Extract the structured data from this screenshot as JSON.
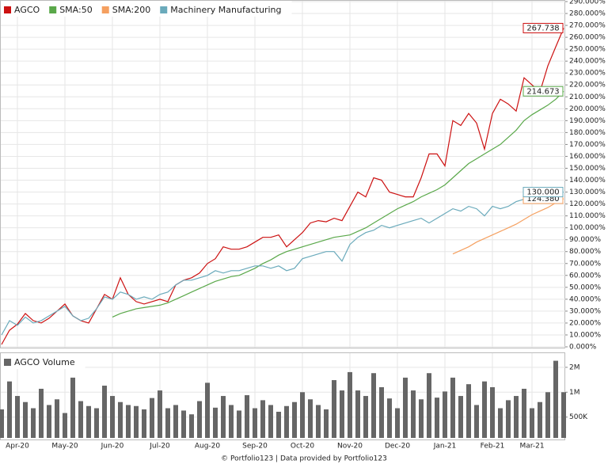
{
  "chart_data": [
    {
      "type": "line",
      "series": [
        {
          "name": "AGCO",
          "color": "#cc1111",
          "values": [
            2,
            14,
            19,
            28,
            22,
            20,
            24,
            30,
            36,
            26,
            22,
            20,
            32,
            44,
            40,
            58,
            44,
            38,
            36,
            38,
            40,
            38,
            52,
            56,
            58,
            62,
            70,
            74,
            84,
            82,
            82,
            84,
            88,
            92,
            92,
            94,
            84,
            90,
            96,
            104,
            106,
            105,
            108,
            106,
            118,
            130,
            126,
            142,
            140,
            130,
            128,
            126,
            126,
            142,
            162,
            162,
            152,
            190,
            186,
            196,
            188,
            166,
            196,
            208,
            204,
            198,
            226,
            220,
            214,
            236,
            252,
            267.738
          ],
          "value_labels": {
            "71": "267.738"
          }
        },
        {
          "name": "SMA:50",
          "color": "#5aa84a",
          "values": [
            null,
            null,
            null,
            null,
            null,
            null,
            null,
            null,
            null,
            null,
            null,
            null,
            null,
            null,
            25,
            28,
            30,
            32,
            33,
            34,
            35,
            37,
            40,
            43,
            46,
            49,
            52,
            55,
            57,
            59,
            60,
            63,
            66,
            70,
            73,
            77,
            80,
            82,
            84,
            86,
            88,
            90,
            92,
            93,
            94,
            97,
            100,
            104,
            108,
            112,
            116,
            119,
            122,
            126,
            129,
            132,
            136,
            142,
            148,
            154,
            158,
            162,
            166,
            170,
            176,
            182,
            190,
            195,
            199,
            203,
            208,
            214.673
          ],
          "value_labels": {
            "71": "214.673"
          }
        },
        {
          "name": "SMA:200",
          "color": "#f5a060",
          "values": [
            null,
            null,
            null,
            null,
            null,
            null,
            null,
            null,
            null,
            null,
            null,
            null,
            null,
            null,
            null,
            null,
            null,
            null,
            null,
            null,
            null,
            null,
            null,
            null,
            null,
            null,
            null,
            null,
            null,
            null,
            null,
            null,
            null,
            null,
            null,
            null,
            null,
            null,
            null,
            null,
            null,
            null,
            null,
            null,
            null,
            null,
            null,
            null,
            null,
            null,
            null,
            null,
            null,
            null,
            null,
            null,
            null,
            78,
            81,
            84,
            88,
            91,
            94,
            97,
            100,
            103,
            107,
            111,
            114,
            117,
            121,
            124.38
          ],
          "value_labels": {
            "71": "124.380"
          }
        },
        {
          "name": "Machinery Manufacturing",
          "color": "#6aaabb",
          "values": [
            10,
            22,
            18,
            25,
            20,
            22,
            26,
            30,
            34,
            26,
            22,
            24,
            32,
            42,
            40,
            46,
            44,
            40,
            42,
            40,
            44,
            46,
            52,
            56,
            56,
            58,
            60,
            64,
            62,
            64,
            64,
            66,
            68,
            68,
            66,
            68,
            64,
            66,
            74,
            76,
            78,
            80,
            80,
            72,
            86,
            92,
            96,
            98,
            102,
            100,
            102,
            104,
            106,
            108,
            104,
            108,
            112,
            116,
            114,
            118,
            116,
            110,
            118,
            116,
            118,
            122,
            124,
            122,
            124,
            126,
            128,
            130
          ],
          "value_labels": {
            "71": "130.000"
          }
        }
      ],
      "ylim": [
        0,
        290
      ],
      "yticks": [
        {
          "value": 0,
          "label": "0.000%"
        },
        {
          "value": 10,
          "label": "10.000%"
        },
        {
          "value": 20,
          "label": "20.000%"
        },
        {
          "value": 30,
          "label": "30.000%"
        },
        {
          "value": 40,
          "label": "40.000%"
        },
        {
          "value": 50,
          "label": "50.000%"
        },
        {
          "value": 60,
          "label": "60.000%"
        },
        {
          "value": 70,
          "label": "70.000%"
        },
        {
          "value": 80,
          "label": "80.000%"
        },
        {
          "value": 90,
          "label": "90.000%"
        },
        {
          "value": 100,
          "label": "100.000%"
        },
        {
          "value": 110,
          "label": "110.000%"
        },
        {
          "value": 120,
          "label": "120.000%"
        },
        {
          "value": 130,
          "label": "130.000%"
        },
        {
          "value": 140,
          "label": "140.000%"
        },
        {
          "value": 150,
          "label": "150.000%"
        },
        {
          "value": 160,
          "label": "160.000%"
        },
        {
          "value": 170,
          "label": "170.000%"
        },
        {
          "value": 180,
          "label": "180.000%"
        },
        {
          "value": 190,
          "label": "190.000%"
        },
        {
          "value": 200,
          "label": "200.000%"
        },
        {
          "value": 210,
          "label": "210.000%"
        },
        {
          "value": 220,
          "label": "220.000%"
        },
        {
          "value": 230,
          "label": "230.000%"
        },
        {
          "value": 240,
          "label": "240.000%"
        },
        {
          "value": 250,
          "label": "250.000%"
        },
        {
          "value": 260,
          "label": "260.000%"
        },
        {
          "value": 270,
          "label": "270.000%"
        },
        {
          "value": 280,
          "label": "280.000%"
        },
        {
          "value": 290,
          "label": "290.000%"
        }
      ],
      "grid": true,
      "legend": "top-left"
    },
    {
      "type": "bar",
      "categories": [
        null,
        null,
        "Apr-20",
        null,
        null,
        null,
        null,
        null,
        "May-20",
        null,
        null,
        null,
        null,
        null,
        "Jun-20",
        null,
        null,
        null,
        null,
        null,
        "Jul-20",
        null,
        null,
        null,
        null,
        null,
        "Aug-20",
        null,
        null,
        null,
        null,
        null,
        "Sep-20",
        null,
        null,
        null,
        null,
        null,
        "Oct-20",
        null,
        null,
        null,
        null,
        null,
        "Nov-20",
        null,
        null,
        null,
        null,
        null,
        "Dec-20",
        null,
        null,
        null,
        null,
        null,
        "Jan-21",
        null,
        null,
        null,
        null,
        null,
        "Feb-21",
        null,
        null,
        null,
        null,
        "Mar-21",
        null,
        null,
        null,
        null
      ],
      "series": [
        {
          "name": "AGCO Volume",
          "color": "#666666",
          "values": [
            620000,
            1350000,
            900000,
            760000,
            640000,
            1100000,
            700000,
            820000,
            560000,
            1500000,
            780000,
            680000,
            640000,
            1200000,
            900000,
            760000,
            700000,
            680000,
            620000,
            850000,
            1050000,
            640000,
            700000,
            600000,
            540000,
            780000,
            1300000,
            650000,
            900000,
            700000,
            600000,
            920000,
            640000,
            800000,
            700000,
            580000,
            680000,
            760000,
            1000000,
            820000,
            700000,
            620000,
            1400000,
            1050000,
            1750000,
            1050000,
            900000,
            1700000,
            1150000,
            840000,
            640000,
            1500000,
            1050000,
            820000,
            1700000,
            860000,
            1020000,
            1500000,
            900000,
            1250000,
            700000,
            1350000,
            1150000,
            640000,
            800000,
            900000,
            1100000,
            640000,
            760000,
            1000000,
            2400000,
            1000000
          ]
        }
      ],
      "ylim": [
        280000,
        2900000
      ],
      "log_scale": true,
      "yticks": [
        {
          "value": 500000,
          "label": "500K"
        },
        {
          "value": 1000000,
          "label": "1M"
        },
        {
          "value": 2000000,
          "label": "2M"
        }
      ],
      "grid": true,
      "legend": "top-left"
    }
  ],
  "footer": "© Portfolio123 | Data provided by Portfolio123"
}
